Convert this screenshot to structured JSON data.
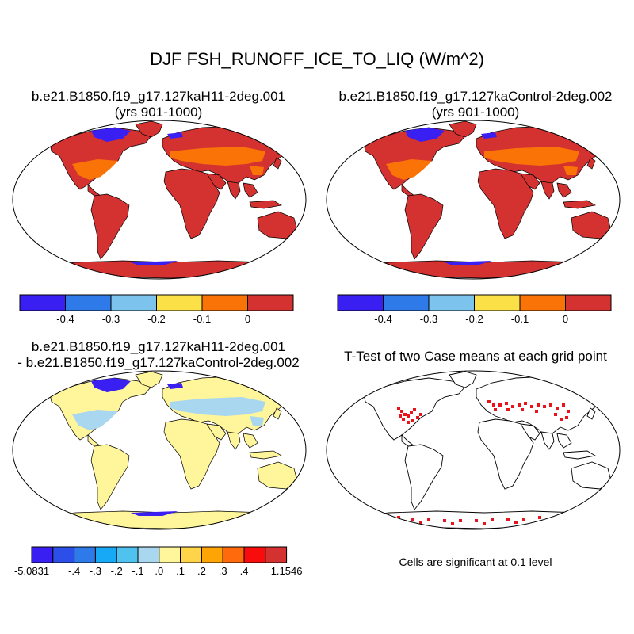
{
  "title": "DJF FSH_RUNOFF_ICE_TO_LIQ (W/m^2)",
  "panels": [
    {
      "id": "case1",
      "title_line1": "b.e21.B1850.f19_g17.127kaH11-2deg.001",
      "title_line2": "(yrs 901-1000)",
      "fill_color": "#d43131",
      "mid_color": "#f97307",
      "pole_color": "#3a1ff2"
    },
    {
      "id": "case2",
      "title_line1": "b.e21.B1850.f19_g17.127kaControl-2deg.002",
      "title_line2": "(yrs 901-1000)",
      "fill_color": "#d43131",
      "mid_color": "#f97307",
      "pole_color": "#3a1ff2"
    },
    {
      "id": "difference",
      "title_line1": "b.e21.B1850.f19_g17.127kaH11-2deg.001",
      "title_line2": "- b.e21.B1850.f19_g17.127kaControl-2deg.002",
      "fill_color": "#fff59a",
      "mid_color": "#a9d7ef",
      "pole_color": "#3a1ff2"
    },
    {
      "id": "ttest",
      "title_line1": "T-Test of two Case means at each grid point",
      "fill_color": "#ffffff",
      "sig_color": "#e8141b"
    }
  ],
  "colorbar_top": {
    "colors": [
      "#3a1ff2",
      "#2f7ae9",
      "#7cc3ee",
      "#fce047",
      "#f97307",
      "#d43131"
    ],
    "labels": [
      "-0.4",
      "-0.3",
      "-0.2",
      "-0.1",
      "0"
    ]
  },
  "colorbar_diff": {
    "colors": [
      "#3a1ff2",
      "#2b4fe8",
      "#2f7ae9",
      "#17a9f5",
      "#4fc2f0",
      "#a9d7ef",
      "#fff59a",
      "#ffd449",
      "#ffa405",
      "#ff6a0c",
      "#f80c0c",
      "#d43131"
    ],
    "labels": [
      "-5.0831",
      "-.4",
      "-.3",
      "-.2",
      "-.1",
      ".0",
      ".1",
      ".2",
      ".3",
      ".4",
      "1.1546"
    ]
  },
  "significance_note": "Cells are significant at 0.1 level"
}
